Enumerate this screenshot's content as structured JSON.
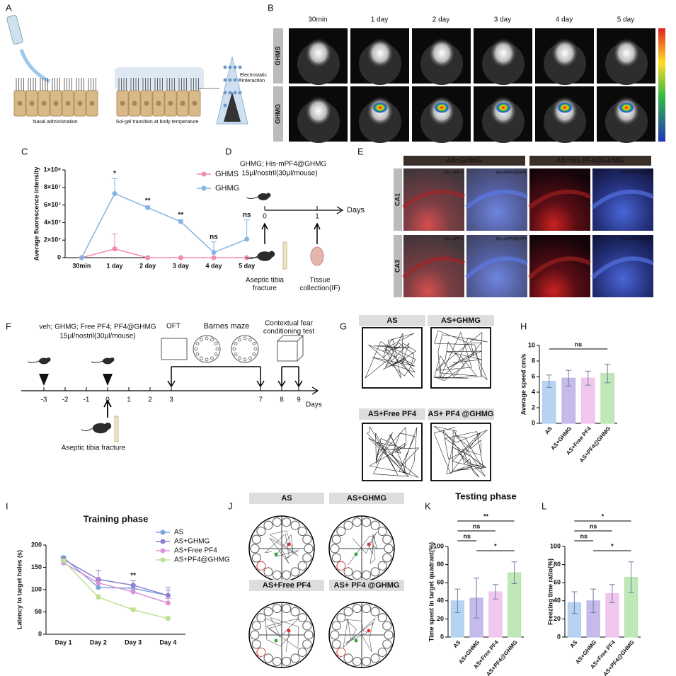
{
  "panels": {
    "letters": [
      "A",
      "B",
      "C",
      "D",
      "E",
      "F",
      "G",
      "H",
      "I",
      "J",
      "K",
      "L"
    ]
  },
  "panel_a": {
    "labels": [
      "Nasal administration",
      "Sol-gel transition at body temperature",
      "Electrostatic interaction"
    ]
  },
  "panel_b": {
    "columns": [
      "30min",
      "1 day",
      "2 day",
      "3 day",
      "4 day",
      "5 day"
    ],
    "rows": [
      "GHMS",
      "GHMG"
    ]
  },
  "panel_d": {
    "treatment": "GHMG; His-mPF4@GHMG",
    "dose": "15μl/nostril(30μl/mouse)",
    "axis_label": "Days",
    "ticks": [
      0,
      1
    ],
    "events": [
      "Aseptic tibia fracture",
      "Tissue collection(IF)"
    ]
  },
  "panel_e": {
    "groups": [
      "AS+GHMG",
      "AS+His PF4@GHMG"
    ],
    "rows": [
      "CA1",
      "CA3"
    ],
    "channels": [
      "His-mPF4",
      "His-mPF4/DAPI"
    ]
  },
  "panel_f": {
    "treatment": "veh; GHMG; Free PF4; PF4@GHMG",
    "dose": "15μl/nostril(30μl/mouse)",
    "tests": [
      "OFT",
      "Barnes maze",
      "Contextual fear conditioning test"
    ],
    "ticks": [
      -3,
      -2,
      -1,
      0,
      1,
      2,
      3,
      7,
      8,
      9
    ],
    "axis_label": "Days",
    "event": "Aseptic tibia fracture"
  },
  "panel_g": {
    "groups": [
      "AS",
      "AS+GHMG",
      "AS+Free PF4",
      "AS+ PF4 @GHMG"
    ]
  },
  "panel_j": {
    "groups": [
      "AS",
      "AS+GHMG",
      "AS+Free PF4",
      "AS+ PF4 @GHMG"
    ]
  },
  "chart_data": [
    {
      "type": "line",
      "ylabel": "Average fluorescence intensity",
      "categories": [
        "30min",
        "1 day",
        "2 day",
        "3 day",
        "4 day",
        "5 day"
      ],
      "series": [
        {
          "name": "GHMS",
          "color": "#f08cb4",
          "values": [
            0,
            10000000,
            0,
            0,
            0,
            0
          ],
          "errors": [
            0,
            17000000,
            0,
            0,
            0,
            0
          ]
        },
        {
          "name": "GHMG",
          "color": "#86b4e2",
          "values": [
            0,
            73000000,
            57000000,
            41000000,
            6000000,
            21000000
          ],
          "errors": [
            0,
            17000000,
            2000000,
            2000000,
            12000000,
            22000000
          ]
        }
      ],
      "ylim": [
        0,
        100000000
      ],
      "yticks": [
        0,
        {
          "value": 20000000,
          "label": "2×10⁷"
        },
        {
          "value": 40000000,
          "label": "4×10⁷"
        },
        {
          "value": 60000000,
          "label": "6×10⁷"
        },
        {
          "value": 80000000,
          "label": "8×10⁷"
        },
        {
          "value": 100000000,
          "label": "1×10⁸"
        }
      ],
      "annotations": [
        null,
        "*",
        "**",
        "**",
        "ns",
        "ns"
      ],
      "legend": "upper right"
    },
    {
      "type": "bar",
      "ylabel": "Average speed cm/s",
      "categories": [
        "AS",
        "AS+GHMG",
        "AS+Free PF4",
        "AS+PF4@GHMG"
      ],
      "values": [
        5.4,
        5.8,
        5.8,
        6.4
      ],
      "errors": [
        0.8,
        1.0,
        0.9,
        1.2
      ],
      "colors": [
        "#a9cdef",
        "#bcaee6",
        "#efbdea",
        "#b4e3ab"
      ],
      "ylim": [
        0,
        10
      ],
      "yticks": [
        0,
        2,
        4,
        6,
        8,
        10
      ],
      "comparisons": [
        {
          "text": "ns",
          "from": 0,
          "to": 3
        }
      ]
    },
    {
      "type": "line",
      "title": "Training phase",
      "ylabel": "Latency to target holes (s)",
      "categories": [
        "Day 1",
        "Day 2",
        "Day 3",
        "Day 4"
      ],
      "series": [
        {
          "name": "AS",
          "color": "#7aa6dc",
          "values": [
            172,
            105,
            103,
            87
          ],
          "errors": [
            3,
            15,
            8,
            18
          ]
        },
        {
          "name": "AS+GHMG",
          "color": "#8b80d2",
          "values": [
            168,
            123,
            110,
            87
          ],
          "errors": [
            4,
            20,
            10,
            12
          ]
        },
        {
          "name": "AS+Free PF4",
          "color": "#da92da",
          "values": [
            160,
            115,
            95,
            70
          ],
          "errors": [
            5,
            12,
            8,
            10
          ]
        },
        {
          "name": "AS+PF4@GHMG",
          "color": "#bde192",
          "values": [
            165,
            83,
            55,
            35
          ],
          "errors": [
            4,
            6,
            4,
            5
          ]
        }
      ],
      "ylim": [
        0,
        200
      ],
      "yticks": [
        0,
        50,
        100,
        150,
        200
      ],
      "annotations": [
        null,
        null,
        "**",
        null
      ],
      "legend": "upper right"
    },
    {
      "type": "bar",
      "title": "Testing phase",
      "ylabel": "Time spent in target quadrant(%)",
      "categories": [
        "AS",
        "AS+GHMG",
        "AS+Free PF4",
        "AS+PF4@GHMG"
      ],
      "values": [
        40,
        43,
        50,
        71
      ],
      "errors": [
        13,
        22,
        8,
        12
      ],
      "colors": [
        "#a9cdef",
        "#bcaee6",
        "#efbdea",
        "#b4e3ab"
      ],
      "ylim": [
        0,
        100
      ],
      "yticks": [
        0,
        20,
        40,
        60,
        80,
        100
      ],
      "comparisons": [
        {
          "text": "**",
          "from": 0,
          "to": 3
        },
        {
          "text": "ns",
          "from": 0,
          "to": 2
        },
        {
          "text": "ns",
          "from": 0,
          "to": 1
        },
        {
          "text": "*",
          "from": 1,
          "to": 3
        }
      ]
    },
    {
      "type": "bar",
      "ylabel": "Freezing time ratio(%)",
      "categories": [
        "AS",
        "AS+GHMG",
        "AS+Free PF4",
        "AS+PF4@GHMG"
      ],
      "values": [
        38,
        40,
        48,
        66
      ],
      "errors": [
        12,
        13,
        10,
        17
      ],
      "colors": [
        "#a9cdef",
        "#bcaee6",
        "#efbdea",
        "#b4e3ab"
      ],
      "ylim": [
        0,
        100
      ],
      "yticks": [
        0,
        20,
        40,
        60,
        80,
        100
      ],
      "comparisons": [
        {
          "text": "*",
          "from": 0,
          "to": 3
        },
        {
          "text": "ns",
          "from": 0,
          "to": 2
        },
        {
          "text": "ns",
          "from": 0,
          "to": 1
        },
        {
          "text": "*",
          "from": 1,
          "to": 3
        }
      ]
    }
  ]
}
